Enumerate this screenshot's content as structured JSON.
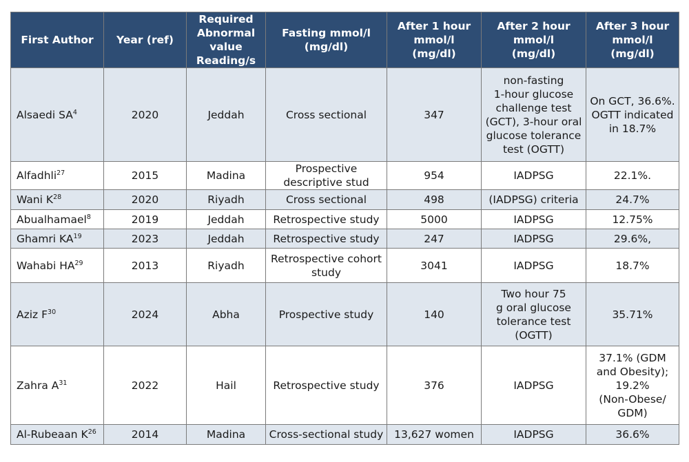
{
  "table": {
    "headers": [
      "First Author",
      "Year (ref)",
      "Required Abnormal value Reading/s",
      "Fasting mmol/l (mg/dl)",
      "After 1 hour mmol/l (mg/dl)",
      "After 2 hour mmol/l (mg/dl)",
      "After 3 hour mmol/l (mg/dl)"
    ],
    "header_lines": [
      [
        "First Author"
      ],
      [
        "Year (ref)"
      ],
      [
        "Required",
        "Abnormal",
        "value",
        "Reading/s"
      ],
      [
        "Fasting mmol/l",
        "(mg/dl)"
      ],
      [
        "After 1 hour",
        "mmol/l",
        "(mg/dl)"
      ],
      [
        "After 2 hour",
        "mmol/l",
        "(mg/dl)"
      ],
      [
        "After 3 hour",
        "mmol/l",
        "(mg/dl)"
      ]
    ],
    "rows": [
      {
        "author": "Alsaedi SA",
        "ref": "4",
        "year": "2020",
        "city": "Jeddah",
        "design": [
          "Cross sectional"
        ],
        "n": "347",
        "criteria": [
          "non-fasting",
          "1-hour glucose",
          "challenge test",
          "(GCT), 3-hour oral",
          "glucose tolerance",
          "test (OGTT)"
        ],
        "prevalence": [
          "On GCT, 36.6%.",
          "OGTT indicated",
          "in 18.7%"
        ]
      },
      {
        "author": "Alfadhli",
        "ref": "27",
        "year": "2015",
        "city": "Madina",
        "design": [
          "Prospective",
          "descriptive stud"
        ],
        "n": "954",
        "criteria": [
          "IADPSG"
        ],
        "prevalence": [
          "22.1%."
        ]
      },
      {
        "author": "Wani K",
        "ref": "28",
        "year": "2020",
        "city": "Riyadh",
        "design": [
          "Cross sectional"
        ],
        "n": "498",
        "criteria": [
          "(IADPSG) criteria"
        ],
        "prevalence": [
          "24.7%"
        ]
      },
      {
        "author": "Abualhamael",
        "ref": "8",
        "year": "2019",
        "city": "Jeddah",
        "design": [
          "Retrospective study"
        ],
        "n": "5000",
        "criteria": [
          "IADPSG"
        ],
        "prevalence": [
          "12.75%"
        ]
      },
      {
        "author": "Ghamri KA",
        "ref": "19",
        "year": "2023",
        "city": "Jeddah",
        "design": [
          "Retrospective study"
        ],
        "n": "247",
        "criteria": [
          "IADPSG"
        ],
        "prevalence": [
          "29.6%,"
        ]
      },
      {
        "author": "Wahabi HA",
        "ref": "29",
        "year": "2013",
        "city": "Riyadh",
        "design": [
          "Retrospective cohort",
          "study"
        ],
        "n": "3041",
        "criteria": [
          "IADPSG"
        ],
        "prevalence": [
          "18.7%"
        ]
      },
      {
        "author": "Aziz F",
        "ref": "30",
        "year": "2024",
        "city": "Abha",
        "design": [
          "Prospective study"
        ],
        "n": "140",
        "criteria": [
          "Two hour 75",
          "g oral glucose",
          "tolerance test",
          "(OGTT)"
        ],
        "prevalence": [
          "35.71%"
        ]
      },
      {
        "author": "Zahra A",
        "ref": "31",
        "year": "2022",
        "city": "Hail",
        "design": [
          "Retrospective study"
        ],
        "n": "376",
        "criteria": [
          "IADPSG"
        ],
        "prevalence": [
          "37.1% (GDM",
          "and Obesity);",
          "19.2%",
          "(Non-Obese/",
          "GDM)"
        ]
      },
      {
        "author": "Al-Rubeaan K",
        "ref": "26",
        "year": "2014",
        "city": "Madina",
        "design": [
          "Cross-sectional study"
        ],
        "n": "13,627 women",
        "criteria": [
          "IADPSG"
        ],
        "prevalence": [
          "36.6%"
        ]
      }
    ]
  }
}
